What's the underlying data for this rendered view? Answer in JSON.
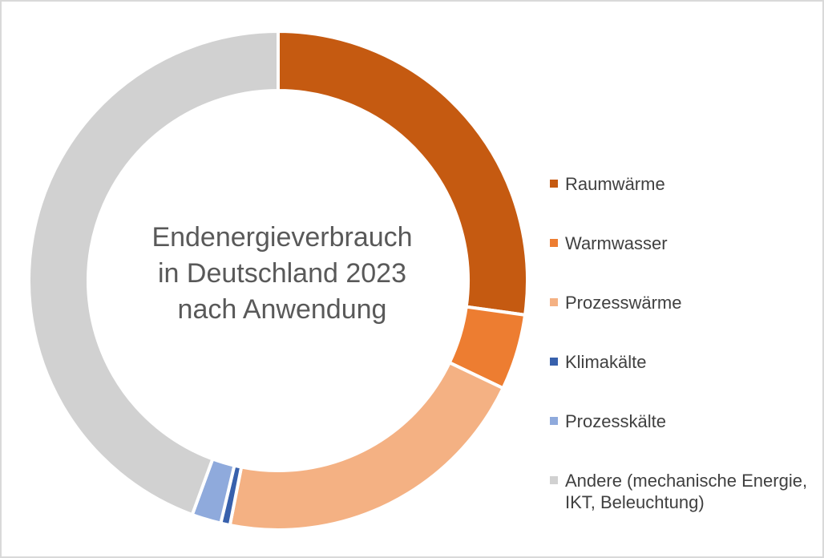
{
  "frame": {
    "border_color": "#D9D9D9",
    "background": "#FFFFFF"
  },
  "chart_data": {
    "type": "pie",
    "subtype": "donut",
    "title": "Endenergieverbrauch in Deutschland 2023 nach Anwendung",
    "title_lines": [
      "Endenergieverbrauch",
      "in Deutschland 2023",
      "nach Anwendung"
    ],
    "title_color": "#595959",
    "legend_position": "right",
    "legend_text_color": "#404040",
    "start_angle_deg": 0,
    "clockwise": true,
    "inner_radius_ratio": 0.762,
    "slice_border_color": "#FFFFFF",
    "values_are_percent_estimates": true,
    "segments": [
      {
        "label": "Raumwärme",
        "value": 27.2,
        "color": "#C55A11"
      },
      {
        "label": "Warmwasser",
        "value": 4.9,
        "color": "#ED7D31"
      },
      {
        "label": "Prozesswärme",
        "value": 21.0,
        "color": "#F4B183"
      },
      {
        "label": "Klimakälte",
        "value": 0.6,
        "color": "#3760AC"
      },
      {
        "label": "Prozesskälte",
        "value": 1.9,
        "color": "#8FAADC"
      },
      {
        "label": "Andere (mechanische Energie, IKT, Beleuchtung)",
        "value": 44.4,
        "color": "#D1D1D1"
      }
    ]
  }
}
